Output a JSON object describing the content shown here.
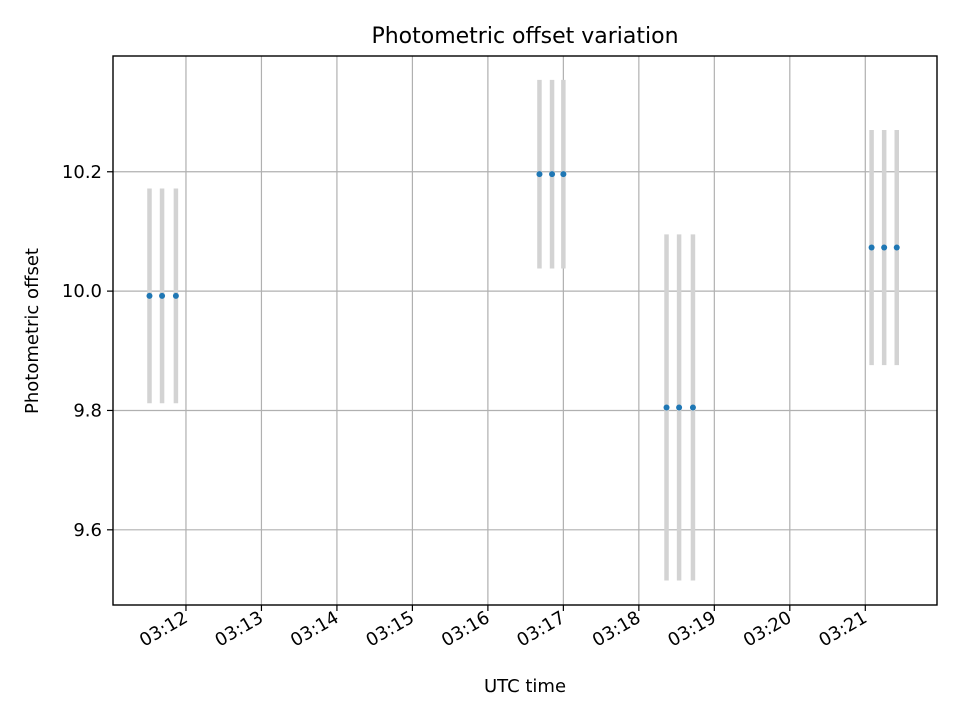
{
  "chart_data": {
    "type": "scatter",
    "title": "Photometric offset variation",
    "xlabel": "UTC time",
    "ylabel": "Photometric offset",
    "x_ticks": [
      "03:12",
      "03:13",
      "03:14",
      "03:15",
      "03:16",
      "03:17",
      "03:18",
      "03:19",
      "03:20",
      "03:21"
    ],
    "y_ticks": [
      "9.6",
      "9.8",
      "10.0",
      "10.2"
    ],
    "xlim": [
      "03:11:02",
      "03:21:57"
    ],
    "ylim": [
      9.474,
      10.394
    ],
    "grid": true,
    "points": [
      {
        "x": "03:11:31",
        "y": 9.992,
        "err": 0.18
      },
      {
        "x": "03:11:41",
        "y": 9.992,
        "err": 0.18
      },
      {
        "x": "03:11:52",
        "y": 9.992,
        "err": 0.18
      },
      {
        "x": "03:16:41",
        "y": 10.196,
        "err": 0.158
      },
      {
        "x": "03:16:51",
        "y": 10.196,
        "err": 0.158
      },
      {
        "x": "03:17:00",
        "y": 10.196,
        "err": 0.158
      },
      {
        "x": "03:18:22",
        "y": 9.805,
        "err": 0.29
      },
      {
        "x": "03:18:32",
        "y": 9.805,
        "err": 0.29
      },
      {
        "x": "03:18:43",
        "y": 9.805,
        "err": 0.29
      },
      {
        "x": "03:21:05",
        "y": 10.073,
        "err": 0.197
      },
      {
        "x": "03:21:15",
        "y": 10.073,
        "err": 0.197
      },
      {
        "x": "03:21:25",
        "y": 10.073,
        "err": 0.197
      }
    ]
  }
}
